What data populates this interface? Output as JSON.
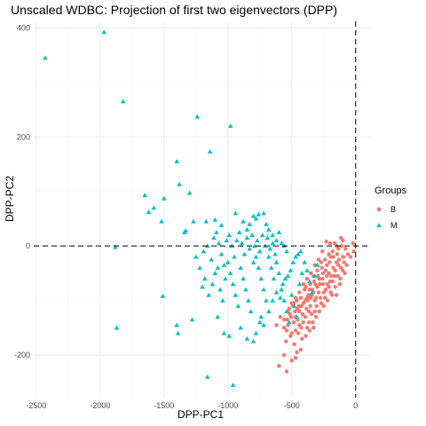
{
  "chart_data": {
    "type": "scatter",
    "title": "Unscaled WDBC: Projection of first two eigenvectors (DPP)",
    "xlabel": "DPP-PC1",
    "ylabel": "DPP-PC2",
    "xlim": [
      -2520,
      120
    ],
    "ylim": [
      -278,
      412
    ],
    "xticks": [
      -2500,
      -2000,
      -1500,
      -1000,
      -500,
      0
    ],
    "xtick_labels": [
      "-2500",
      "-2000",
      "-1500",
      "-1000",
      "-500",
      "0"
    ],
    "yticks": [
      -200,
      0,
      200,
      400
    ],
    "ytick_labels": [
      "-200",
      "0",
      "200",
      "400"
    ],
    "grid": true,
    "reference_lines": {
      "x": 0,
      "y": 0,
      "style": "dashed"
    },
    "legend": {
      "title": "Groups",
      "placement": "right"
    },
    "series": [
      {
        "name": "B",
        "color": "#F8766D",
        "marker": "circle",
        "points": [
          [
            -20,
            5
          ],
          [
            -15,
            -10
          ],
          [
            -40,
            -20
          ],
          [
            -80,
            -5
          ],
          [
            -90,
            -30
          ],
          [
            -100,
            -45
          ],
          [
            -120,
            -60
          ],
          [
            -140,
            -55
          ],
          [
            -150,
            -30
          ],
          [
            -160,
            -75
          ],
          [
            -175,
            -40
          ],
          [
            -185,
            -90
          ],
          [
            -200,
            -65
          ],
          [
            -210,
            -50
          ],
          [
            -220,
            -100
          ],
          [
            -235,
            -80
          ],
          [
            -250,
            -110
          ],
          [
            -260,
            -60
          ],
          [
            -275,
            -95
          ],
          [
            -285,
            -120
          ],
          [
            -300,
            -75
          ],
          [
            -310,
            -130
          ],
          [
            -320,
            -100
          ],
          [
            -330,
            -85
          ],
          [
            -345,
            -125
          ],
          [
            -355,
            -110
          ],
          [
            -365,
            -140
          ],
          [
            -380,
            -95
          ],
          [
            -395,
            -130
          ],
          [
            -410,
            -105
          ],
          [
            -425,
            -150
          ],
          [
            -440,
            -120
          ],
          [
            -455,
            -135
          ],
          [
            -470,
            -155
          ],
          [
            -485,
            -140
          ],
          [
            -500,
            -160
          ],
          [
            -515,
            -125
          ],
          [
            -530,
            -145
          ],
          [
            -545,
            -175
          ],
          [
            -560,
            -150
          ],
          [
            -100,
            -20
          ],
          [
            -110,
            0
          ],
          [
            -130,
            -25
          ],
          [
            -145,
            -15
          ],
          [
            -160,
            -45
          ],
          [
            -175,
            -20
          ],
          [
            -190,
            -55
          ],
          [
            -205,
            -30
          ],
          [
            -220,
            -70
          ],
          [
            -235,
            -45
          ],
          [
            -250,
            -85
          ],
          [
            -265,
            -40
          ],
          [
            -280,
            -70
          ],
          [
            -295,
            -55
          ],
          [
            -310,
            -95
          ],
          [
            -325,
            -65
          ],
          [
            -340,
            -80
          ],
          [
            -355,
            -70
          ],
          [
            -370,
            -90
          ],
          [
            -385,
            -115
          ],
          [
            -400,
            -80
          ],
          [
            -415,
            -125
          ],
          [
            -430,
            -95
          ],
          [
            -445,
            -110
          ],
          [
            -460,
            -100
          ],
          [
            -475,
            -120
          ],
          [
            -490,
            -110
          ],
          [
            -505,
            -130
          ],
          [
            -520,
            -115
          ],
          [
            -535,
            -135
          ],
          [
            -60,
            -15
          ],
          [
            -70,
            -35
          ],
          [
            -85,
            -50
          ],
          [
            -95,
            -20
          ],
          [
            -115,
            -40
          ],
          [
            -125,
            -70
          ],
          [
            -135,
            -35
          ],
          [
            -150,
            -90
          ],
          [
            -165,
            -55
          ],
          [
            -180,
            -65
          ],
          [
            -195,
            -85
          ],
          [
            -210,
            -75
          ],
          [
            -225,
            -55
          ],
          [
            -240,
            -95
          ],
          [
            -255,
            -70
          ],
          [
            -270,
            -105
          ],
          [
            -290,
            -85
          ],
          [
            -305,
            -110
          ],
          [
            -320,
            -120
          ],
          [
            -335,
            -140
          ],
          [
            -350,
            -95
          ],
          [
            -365,
            -120
          ],
          [
            -380,
            -150
          ],
          [
            -395,
            -100
          ],
          [
            -410,
            -140
          ],
          [
            -425,
            -110
          ],
          [
            -440,
            -145
          ],
          [
            -455,
            -115
          ],
          [
            -470,
            -130
          ],
          [
            -485,
            -105
          ],
          [
            -100,
            10
          ],
          [
            -115,
            15
          ],
          [
            -135,
            -5
          ],
          [
            -150,
            0
          ],
          [
            -165,
            5
          ],
          [
            -180,
            -10
          ],
          [
            -195,
            -20
          ],
          [
            -210,
            -15
          ],
          [
            -225,
            -35
          ],
          [
            -240,
            -25
          ],
          [
            -255,
            -50
          ],
          [
            -270,
            -30
          ],
          [
            -285,
            -60
          ],
          [
            -300,
            -45
          ],
          [
            -315,
            -70
          ],
          [
            -330,
            -55
          ],
          [
            -345,
            -90
          ],
          [
            -360,
            -80
          ],
          [
            -375,
            -100
          ],
          [
            -390,
            -75
          ],
          [
            -200,
            5
          ],
          [
            -230,
            8
          ],
          [
            -260,
            -10
          ],
          [
            -290,
            -25
          ],
          [
            -320,
            -35
          ],
          [
            -350,
            -50
          ],
          [
            -380,
            -60
          ],
          [
            -410,
            -70
          ],
          [
            -440,
            -85
          ],
          [
            -470,
            -95
          ],
          [
            -500,
            -105
          ],
          [
            -530,
            -120
          ],
          [
            -560,
            -135
          ],
          [
            -590,
            -130
          ],
          [
            -620,
            -145
          ],
          [
            -450,
            -160
          ],
          [
            -420,
            -170
          ],
          [
            -390,
            -165
          ],
          [
            -360,
            -155
          ],
          [
            -330,
            -150
          ],
          [
            -480,
            -180
          ],
          [
            -510,
            -165
          ],
          [
            -540,
            -155
          ],
          [
            -460,
            -195
          ],
          [
            -560,
            -200
          ],
          [
            -600,
            -220
          ],
          [
            -540,
            -230
          ],
          [
            -500,
            -210
          ],
          [
            -470,
            -205
          ],
          [
            -430,
            -190
          ]
        ]
      },
      {
        "name": "M",
        "color": "#00BFC4",
        "marker": "triangle",
        "points": [
          [
            -2430,
            345
          ],
          [
            -1970,
            392
          ],
          [
            -1820,
            265
          ],
          [
            -1240,
            237
          ],
          [
            -980,
            220
          ],
          [
            -1400,
            155
          ],
          [
            -1140,
            173
          ],
          [
            -1650,
            93
          ],
          [
            -1500,
            87
          ],
          [
            -1380,
            113
          ],
          [
            -1300,
            97
          ],
          [
            -1620,
            62
          ],
          [
            -1580,
            70
          ],
          [
            -1520,
            45
          ],
          [
            -1270,
            45
          ],
          [
            -1340,
            25
          ],
          [
            -1330,
            28
          ],
          [
            -1170,
            45
          ],
          [
            -1100,
            48
          ],
          [
            -1050,
            38
          ],
          [
            -940,
            60
          ],
          [
            -880,
            45
          ],
          [
            -850,
            30
          ],
          [
            -830,
            40
          ],
          [
            -800,
            55
          ],
          [
            -780,
            50
          ],
          [
            -760,
            58
          ],
          [
            -720,
            60
          ],
          [
            -700,
            40
          ],
          [
            -680,
            30
          ],
          [
            -650,
            20
          ],
          [
            -620,
            10
          ],
          [
            -600,
            25
          ],
          [
            -580,
            5
          ],
          [
            -560,
            0
          ],
          [
            -540,
            -10
          ],
          [
            -1880,
            -2
          ],
          [
            -1870,
            -150
          ],
          [
            -1510,
            -92
          ],
          [
            -1400,
            -145
          ],
          [
            -1390,
            -160
          ],
          [
            -1280,
            -135
          ],
          [
            -1160,
            -240
          ],
          [
            -1080,
            -130
          ],
          [
            -1030,
            -160
          ],
          [
            -990,
            -165
          ],
          [
            -960,
            -255
          ],
          [
            -900,
            -150
          ],
          [
            -850,
            -170
          ],
          [
            -800,
            -175
          ],
          [
            -780,
            -160
          ],
          [
            -750,
            -140
          ],
          [
            -740,
            -130
          ],
          [
            -720,
            -145
          ],
          [
            -680,
            -120
          ],
          [
            -650,
            -100
          ],
          [
            -620,
            -85
          ],
          [
            -590,
            -95
          ],
          [
            -570,
            -70
          ],
          [
            -550,
            -60
          ],
          [
            -530,
            -55
          ],
          [
            -510,
            -45
          ],
          [
            -490,
            -30
          ],
          [
            -470,
            -20
          ],
          [
            -450,
            -15
          ],
          [
            -430,
            -10
          ],
          [
            -1200,
            -75
          ],
          [
            -1180,
            -60
          ],
          [
            -1150,
            -90
          ],
          [
            -1120,
            -70
          ],
          [
            -1100,
            -50
          ],
          [
            -1080,
            -40
          ],
          [
            -1060,
            -80
          ],
          [
            -1040,
            -100
          ],
          [
            -1020,
            -60
          ],
          [
            -1000,
            -30
          ],
          [
            -980,
            -50
          ],
          [
            -960,
            -70
          ],
          [
            -940,
            -90
          ],
          [
            -920,
            -110
          ],
          [
            -900,
            -40
          ],
          [
            -880,
            -60
          ],
          [
            -860,
            -80
          ],
          [
            -840,
            -100
          ],
          [
            -820,
            -120
          ],
          [
            -800,
            -30
          ],
          [
            -780,
            -20
          ],
          [
            -760,
            -40
          ],
          [
            -740,
            -60
          ],
          [
            -720,
            -80
          ],
          [
            -700,
            -100
          ],
          [
            -680,
            -20
          ],
          [
            -660,
            -40
          ],
          [
            -640,
            -60
          ],
          [
            -620,
            -30
          ],
          [
            -600,
            -50
          ],
          [
            -580,
            -80
          ],
          [
            -560,
            -100
          ],
          [
            -540,
            -120
          ],
          [
            -520,
            -140
          ],
          [
            -500,
            -90
          ],
          [
            -480,
            -110
          ],
          [
            -460,
            -130
          ],
          [
            -440,
            -70
          ],
          [
            -420,
            -50
          ],
          [
            -400,
            -30
          ],
          [
            -380,
            -45
          ],
          [
            -360,
            -65
          ],
          [
            -340,
            -85
          ],
          [
            -320,
            -55
          ],
          [
            -300,
            -35
          ],
          [
            -1250,
            -20
          ],
          [
            -1220,
            -40
          ],
          [
            -1190,
            -10
          ],
          [
            -1160,
            0
          ],
          [
            -1130,
            -25
          ],
          [
            -1110,
            15
          ],
          [
            -1090,
            25
          ],
          [
            -1070,
            5
          ],
          [
            -1050,
            -15
          ],
          [
            -1030,
            -35
          ],
          [
            -1010,
            10
          ],
          [
            -990,
            20
          ],
          [
            -970,
            0
          ],
          [
            -950,
            -20
          ],
          [
            -930,
            10
          ],
          [
            -910,
            25
          ],
          [
            -890,
            5
          ],
          [
            -870,
            -15
          ],
          [
            -850,
            15
          ],
          [
            -830,
            -5
          ],
          [
            -810,
            20
          ],
          [
            -790,
            0
          ],
          [
            -770,
            10
          ],
          [
            -750,
            -10
          ],
          [
            -730,
            20
          ],
          [
            -710,
            0
          ],
          [
            -690,
            15
          ],
          [
            -670,
            -5
          ],
          [
            -650,
            5
          ],
          [
            -630,
            -15
          ]
        ]
      }
    ]
  }
}
